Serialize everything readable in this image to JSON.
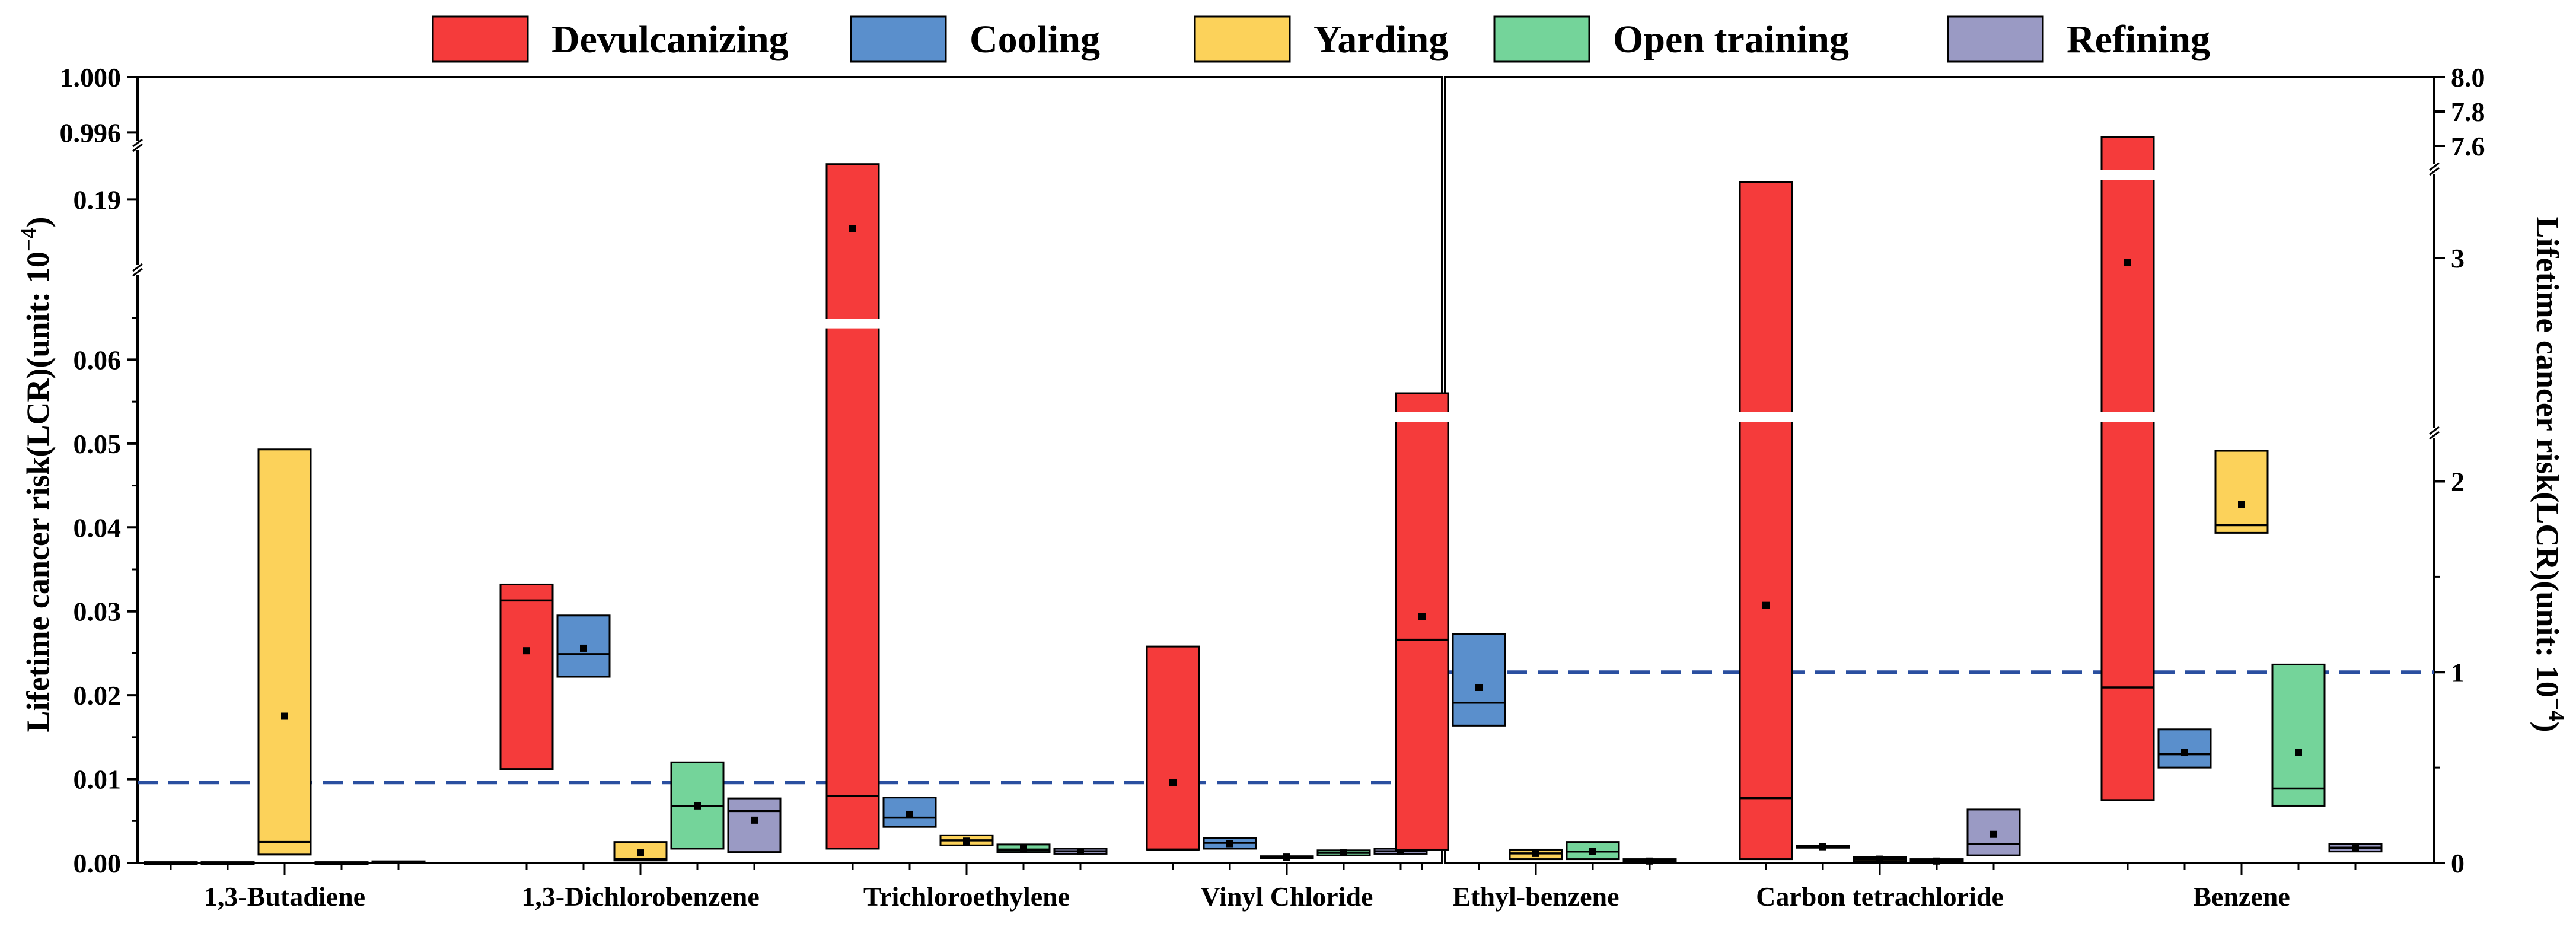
{
  "chart_data": [
    {
      "type": "box",
      "panel": "left",
      "categories": [
        "1,3-Butadiene",
        "1,3-Dichlorobenzene",
        "Trichloroethylene",
        "Vinyl Chloride"
      ],
      "ylabel_main": "Lifetime cancer risk(LCR)(unit: 10",
      "ylabel_exp": "−4",
      "ylabel_close": ")",
      "y_segments": [
        {
          "range": [
            0,
            0.07
          ],
          "ticks": [
            "0.00",
            "0.01",
            "0.02",
            "0.03",
            "0.04",
            "0.05",
            "0.06"
          ],
          "tick_values": [
            0,
            0.01,
            0.02,
            0.03,
            0.04,
            0.05,
            0.06
          ]
        },
        {
          "range": [
            0.17,
            0.205
          ],
          "ticks": [
            "0.19"
          ],
          "tick_values": [
            0.19
          ]
        },
        {
          "range": [
            0.9955,
            1.0
          ],
          "ticks": [
            "0.996",
            "1.000"
          ],
          "tick_values": [
            0.996,
            1.0
          ]
        }
      ],
      "threshold": 0.0096,
      "boxes": [
        {
          "category": 0,
          "series": "Devulcanizing",
          "low": 0.0,
          "high": 0.0001,
          "median": 0.0,
          "mean": null
        },
        {
          "category": 0,
          "series": "Cooling",
          "low": 0.0,
          "high": 0.0001,
          "median": 0.0,
          "mean": null
        },
        {
          "category": 0,
          "series": "Yarding",
          "low": 0.001,
          "high": 0.0493,
          "median": 0.0025,
          "mean": 0.0175
        },
        {
          "category": 0,
          "series": "Open training",
          "low": 0.0,
          "high": 0.0001,
          "median": 0.0,
          "mean": null
        },
        {
          "category": 0,
          "series": "Refining",
          "low": 0.0,
          "high": 0.0002,
          "median": 0.0001,
          "mean": null
        },
        {
          "category": 1,
          "series": "Devulcanizing",
          "low": 0.0112,
          "high": 0.0332,
          "median": 0.0313,
          "mean": 0.0253
        },
        {
          "category": 1,
          "series": "Cooling",
          "low": 0.0222,
          "high": 0.0295,
          "median": 0.0249,
          "mean": 0.0256
        },
        {
          "category": 1,
          "series": "Yarding",
          "low": 0.0003,
          "high": 0.0025,
          "median": 0.0005,
          "mean": 0.0012
        },
        {
          "category": 1,
          "series": "Open training",
          "low": 0.0017,
          "high": 0.012,
          "median": 0.0068,
          "mean": 0.0068
        },
        {
          "category": 1,
          "series": "Refining",
          "low": 0.0013,
          "high": 0.0077,
          "median": 0.0062,
          "mean": 0.0051
        },
        {
          "category": 2,
          "series": "Devulcanizing",
          "low": 0.0017,
          "high": 0.201,
          "median": 0.008,
          "mean": 0.181,
          "break_mark": 0.0643
        },
        {
          "category": 2,
          "series": "Cooling",
          "low": 0.0043,
          "high": 0.0078,
          "median": 0.0054,
          "mean": 0.0058
        },
        {
          "category": 2,
          "series": "Yarding",
          "low": 0.0021,
          "high": 0.0033,
          "median": 0.0027,
          "mean": 0.0026
        },
        {
          "category": 2,
          "series": "Open training",
          "low": 0.0013,
          "high": 0.0022,
          "median": 0.0016,
          "mean": 0.0017
        },
        {
          "category": 2,
          "series": "Refining",
          "low": 0.0011,
          "high": 0.0017,
          "median": 0.0014,
          "mean": 0.0014
        },
        {
          "category": 3,
          "series": "Devulcanizing",
          "low": 0.0016,
          "high": 0.0258,
          "median": 0.0016,
          "mean": 0.0096
        },
        {
          "category": 3,
          "series": "Cooling",
          "low": 0.0017,
          "high": 0.003,
          "median": 0.0024,
          "mean": 0.0023
        },
        {
          "category": 3,
          "series": "Yarding",
          "low": 0.0006,
          "high": 0.0008,
          "median": 0.0007,
          "mean": 0.0007
        },
        {
          "category": 3,
          "series": "Open training",
          "low": 0.0009,
          "high": 0.0015,
          "median": 0.0012,
          "mean": 0.0012
        },
        {
          "category": 3,
          "series": "Refining",
          "low": 0.0011,
          "high": 0.0017,
          "median": 0.0014,
          "mean": 0.0014
        }
      ]
    },
    {
      "type": "box",
      "panel": "right",
      "categories": [
        "Ethyl-benzene",
        "Carbon tetrachloride",
        "Benzene"
      ],
      "ylabel_main": "Lifetime cancer risk(LCR)(unit: 10",
      "ylabel_exp": "−4",
      "ylabel_close": ")",
      "y_segments": [
        {
          "range": [
            0,
            2.3
          ],
          "ticks": [
            "0",
            "1",
            "2"
          ],
          "tick_values": [
            0,
            1,
            2
          ]
        },
        {
          "range": [
            2.3,
            3.35
          ],
          "ticks": [
            "3"
          ],
          "tick_values": [
            3
          ]
        },
        {
          "range": [
            7.5,
            8.0
          ],
          "ticks": [
            "7.6",
            "7.8",
            "8.0"
          ],
          "tick_values": [
            7.6,
            7.8,
            8.0
          ]
        }
      ],
      "threshold": 1,
      "boxes": [
        {
          "category": 0,
          "series": "Devulcanizing",
          "low": 0.07,
          "high": 2.43,
          "median": 1.17,
          "mean": 1.29,
          "break_mark": 2.33
        },
        {
          "category": 0,
          "series": "Cooling",
          "low": 0.72,
          "high": 1.2,
          "median": 0.84,
          "mean": 0.92
        },
        {
          "category": 0,
          "series": "Yarding",
          "low": 0.02,
          "high": 0.07,
          "median": 0.05,
          "mean": 0.05
        },
        {
          "category": 0,
          "series": "Open training",
          "low": 0.02,
          "high": 0.11,
          "median": 0.06,
          "mean": 0.06
        },
        {
          "category": 0,
          "series": "Refining",
          "low": 0.0,
          "high": 0.02,
          "median": 0.01,
          "mean": 0.01
        },
        {
          "category": 1,
          "series": "Devulcanizing",
          "low": 0.02,
          "high": 3.32,
          "median": 0.34,
          "mean": 1.35,
          "break_mark": 2.33
        },
        {
          "category": 1,
          "series": "Cooling",
          "low": 0.08,
          "high": 0.09,
          "median": 0.085,
          "mean": 0.085
        },
        {
          "category": 1,
          "series": "Yarding",
          "low": 0.01,
          "high": 0.03,
          "median": 0.02,
          "mean": 0.02
        },
        {
          "category": 1,
          "series": "Open training",
          "low": 0.0,
          "high": 0.02,
          "median": 0.01,
          "mean": 0.01
        },
        {
          "category": 1,
          "series": "Refining",
          "low": 0.04,
          "high": 0.28,
          "median": 0.1,
          "mean": 0.15
        },
        {
          "category": 2,
          "series": "Devulcanizing",
          "low": 0.33,
          "high": 7.65,
          "median": 0.92,
          "mean": 2.98,
          "break_mark": 2.33,
          "break_mark2": 3.36
        },
        {
          "category": 2,
          "series": "Cooling",
          "low": 0.5,
          "high": 0.7,
          "median": 0.57,
          "mean": 0.58
        },
        {
          "category": 2,
          "series": "Yarding",
          "low": 1.73,
          "high": 2.16,
          "median": 1.77,
          "mean": 1.88
        },
        {
          "category": 2,
          "series": "Open training",
          "low": 0.3,
          "high": 1.04,
          "median": 0.39,
          "mean": 0.58
        },
        {
          "category": 2,
          "series": "Refining",
          "low": 0.06,
          "high": 0.1,
          "median": 0.08,
          "mean": 0.08
        }
      ]
    }
  ],
  "legend": [
    {
      "label": "Devulcanizing",
      "color": "#f53b3b"
    },
    {
      "label": "Cooling",
      "color": "#5a8fcc"
    },
    {
      "label": "Yarding",
      "color": "#fcd25a"
    },
    {
      "label": "Open training",
      "color": "#74d49a"
    },
    {
      "label": "Refining",
      "color": "#9a9ac4"
    }
  ],
  "threshold_color": "#2a4fa0"
}
